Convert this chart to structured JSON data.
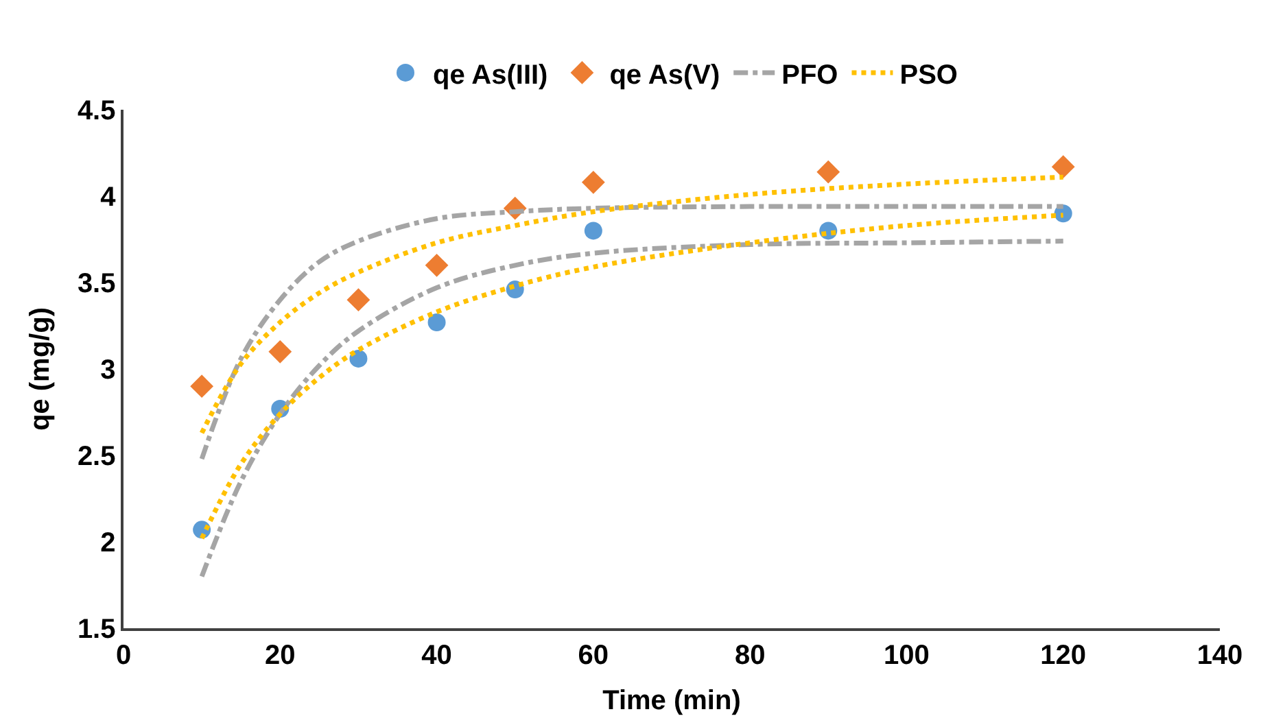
{
  "chart_data": {
    "type": "scatter",
    "xlabel": "Time (min)",
    "ylabel": "qe (mg/g)",
    "xlim": [
      0,
      140
    ],
    "xticks": [
      0,
      20,
      40,
      60,
      80,
      100,
      120,
      140
    ],
    "ylim": [
      1.5,
      4.5
    ],
    "yticks": [
      1.5,
      2,
      2.5,
      3,
      3.5,
      4,
      4.5
    ],
    "legend": "top",
    "series": [
      {
        "name": "qe As(III)",
        "marker": "circle",
        "color": "#5b9bd5",
        "x": [
          10,
          20,
          30,
          40,
          50,
          60,
          90,
          120
        ],
        "values": [
          2.07,
          2.77,
          3.06,
          3.27,
          3.46,
          3.8,
          3.8,
          3.9
        ]
      },
      {
        "name": "qe As(V)",
        "marker": "diamond",
        "color": "#ed7d31",
        "x": [
          10,
          20,
          30,
          40,
          50,
          60,
          90,
          120
        ],
        "values": [
          2.9,
          3.1,
          3.4,
          3.6,
          3.93,
          4.08,
          4.14,
          4.17
        ]
      },
      {
        "name": "PFO",
        "type": "line",
        "line_style": "dashed",
        "color": "#a5a5a5",
        "x": [
          10,
          15,
          20,
          25,
          30,
          40,
          50,
          60,
          80,
          100,
          120
        ],
        "values": [
          2.48,
          3.06,
          3.4,
          3.62,
          3.74,
          3.87,
          3.91,
          3.93,
          3.94,
          3.94,
          3.94
        ]
      },
      {
        "type": "line",
        "line_style": "dashed",
        "color": "#a5a5a5",
        "x": [
          10,
          15,
          20,
          25,
          30,
          40,
          50,
          60,
          80,
          100,
          120
        ],
        "values": [
          1.8,
          2.35,
          2.74,
          3.02,
          3.22,
          3.47,
          3.6,
          3.67,
          3.72,
          3.73,
          3.74
        ]
      },
      {
        "name": "PSO",
        "type": "line",
        "line_style": "dotted",
        "color": "#ffc000",
        "x": [
          10,
          15,
          20,
          25,
          30,
          40,
          50,
          60,
          80,
          100,
          120
        ],
        "values": [
          2.63,
          3.03,
          3.27,
          3.44,
          3.56,
          3.73,
          3.83,
          3.91,
          4.01,
          4.07,
          4.11
        ]
      },
      {
        "type": "line",
        "line_style": "dotted",
        "color": "#ffc000",
        "x": [
          10,
          15,
          20,
          25,
          30,
          40,
          50,
          60,
          80,
          100,
          120
        ],
        "values": [
          2.02,
          2.45,
          2.74,
          2.95,
          3.11,
          3.33,
          3.48,
          3.59,
          3.73,
          3.83,
          3.89
        ]
      }
    ]
  }
}
